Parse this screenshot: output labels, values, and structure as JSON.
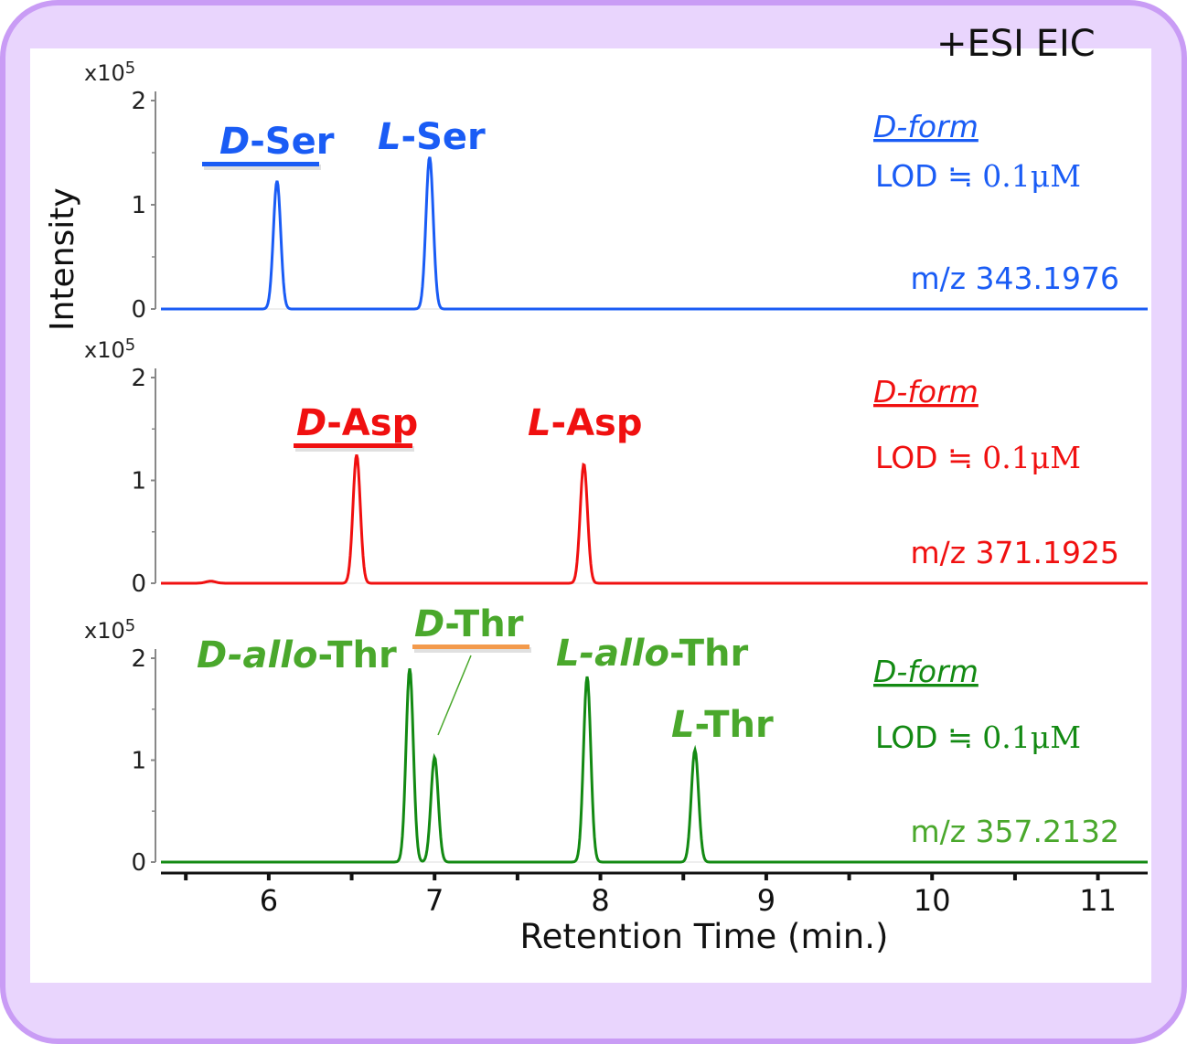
{
  "chart_data": {
    "type": "line",
    "header": "+ESI EIC",
    "ylabel": "Intensity",
    "xlabel": "Retention Time (min.)",
    "xlim": [
      5.35,
      11.3
    ],
    "x_ticks": [
      "6",
      "7",
      "8",
      "9",
      "10",
      "11"
    ],
    "x_tick_values": [
      6,
      7,
      8,
      9,
      10,
      11
    ],
    "y_scale_label": "x10",
    "y_scale_exp": "5",
    "y_ticks": [
      "0",
      "1",
      "2"
    ],
    "ylim": [
      0,
      2
    ],
    "panels": [
      {
        "color": "#1a5cf5",
        "mz": "m/z 343.1976",
        "dform": "D-form",
        "lod": "LOD ≒ ",
        "lod_value": "0.1μM",
        "peaks": [
          {
            "name_italic": "D",
            "name_rest": "-Ser",
            "rt": 6.05,
            "height": 1.23,
            "dform": true
          },
          {
            "name_italic": "L",
            "name_rest": "-Ser",
            "rt": 6.97,
            "height": 1.46,
            "dform": false
          }
        ]
      },
      {
        "color": "#f01010",
        "mz": "m/z 371.1925",
        "dform": "D-form",
        "lod": "LOD ≒ ",
        "lod_value": "0.1μM",
        "peaks": [
          {
            "name_italic": "D",
            "name_rest": "-Asp",
            "rt": 6.53,
            "height": 1.25,
            "dform": true
          },
          {
            "name_italic": "L",
            "name_rest": "-Asp",
            "rt": 7.9,
            "height": 1.16,
            "dform": false
          }
        ],
        "minor_peaks": [
          {
            "rt": 5.65,
            "height": 0.02
          }
        ]
      },
      {
        "color": "#138a13",
        "label_color": "#4aa82c",
        "mz": "m/z 357.2132",
        "dform": "D-form",
        "lod": "LOD ≒ ",
        "lod_value": "0.1μM",
        "peaks": [
          {
            "name_italic": "D-allo",
            "name_rest": "-Thr",
            "rt": 6.85,
            "height": 1.9,
            "dform": false
          },
          {
            "name_italic": "D",
            "name_rest": "-Thr",
            "rt": 7.0,
            "height": 1.03,
            "dform": true
          },
          {
            "name_italic": "L-allo",
            "name_rest": "-Thr",
            "rt": 7.92,
            "height": 1.82,
            "dform": false
          },
          {
            "name_italic": "L",
            "name_rest": "-Thr",
            "rt": 8.57,
            "height": 1.1,
            "dform": false
          }
        ]
      }
    ]
  }
}
